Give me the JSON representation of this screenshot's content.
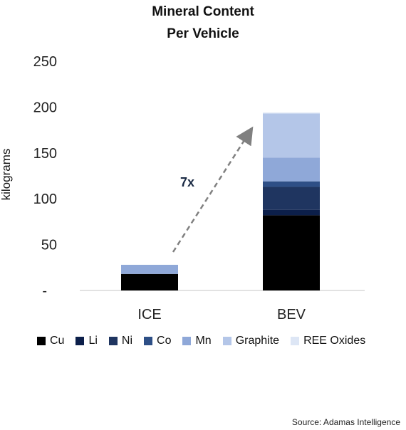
{
  "chart_data": {
    "type": "bar",
    "stacked": true,
    "title": "Mineral Content",
    "subtitle": "Per Vehicle",
    "ylabel": "kilograms",
    "xlabel": "",
    "ylim": [
      0,
      250
    ],
    "yticks": [
      "-",
      "50",
      "100",
      "150",
      "200",
      "250"
    ],
    "categories": [
      "ICE",
      "BEV"
    ],
    "series": [
      {
        "name": "Cu",
        "color": "#000000",
        "values": [
          18,
          82
        ]
      },
      {
        "name": "Li",
        "color": "#0c1f4a",
        "values": [
          0,
          6
        ]
      },
      {
        "name": "Ni",
        "color": "#1f3560",
        "values": [
          0,
          25
        ]
      },
      {
        "name": "Co",
        "color": "#2e4f86",
        "values": [
          0,
          6
        ]
      },
      {
        "name": "Mn",
        "color": "#8fa8d8",
        "values": [
          10,
          26
        ]
      },
      {
        "name": "Graphite",
        "color": "#b4c6e8",
        "values": [
          0,
          48
        ]
      },
      {
        "name": "REE Oxides",
        "color": "#dde6f5",
        "values": [
          0,
          1
        ]
      }
    ],
    "annotation": "7x",
    "legend_position": "bottom",
    "grid": false
  },
  "source": "Source: Adamas Intelligence"
}
